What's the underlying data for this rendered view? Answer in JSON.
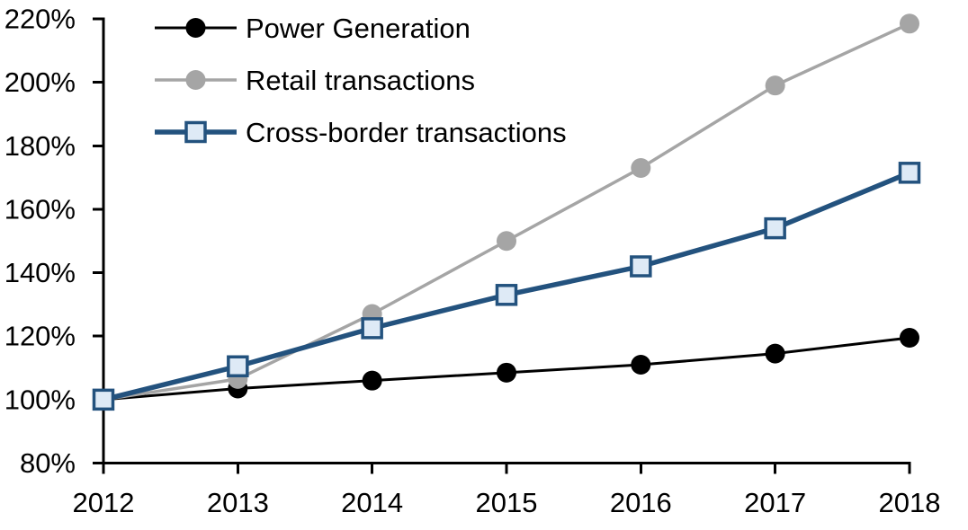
{
  "chart_data": {
    "type": "line",
    "title": "",
    "xlabel": "",
    "ylabel": "",
    "x_tick_labels": [
      "2012",
      "2013",
      "2014",
      "2015",
      "2016",
      "2017",
      "2018"
    ],
    "y_ticks": [
      80,
      100,
      120,
      140,
      160,
      180,
      200,
      220
    ],
    "y_tick_labels": [
      "80%",
      "100%",
      "120%",
      "140%",
      "160%",
      "180%",
      "200%",
      "220%"
    ],
    "ylim": [
      80,
      220
    ],
    "grid": false,
    "legend_position": "top-left-inside",
    "background": "#FFFFFF",
    "axis_color": "#000000",
    "series": [
      {
        "name": "Power Generation",
        "values": [
          100,
          103.5,
          106,
          108.5,
          111,
          114.5,
          119.5
        ],
        "line_color": "#000000",
        "line_width": 3,
        "marker": "circle",
        "marker_fill": "#000000",
        "marker_size": 22
      },
      {
        "name": "Retail transactions",
        "values": [
          100,
          106.5,
          127,
          150,
          173,
          199,
          218.5
        ],
        "line_color": "#A5A5A5",
        "line_width": 3.5,
        "marker": "circle",
        "marker_fill": "#A5A5A5",
        "marker_size": 22
      },
      {
        "name": "Cross-border transactions",
        "values": [
          100,
          110.5,
          122.5,
          133,
          142,
          154,
          171.5
        ],
        "line_color": "#23527E",
        "line_width": 5.5,
        "marker": "square",
        "marker_fill": "#DEEAF6",
        "marker_border": "#23527E",
        "marker_size": 21
      }
    ]
  }
}
